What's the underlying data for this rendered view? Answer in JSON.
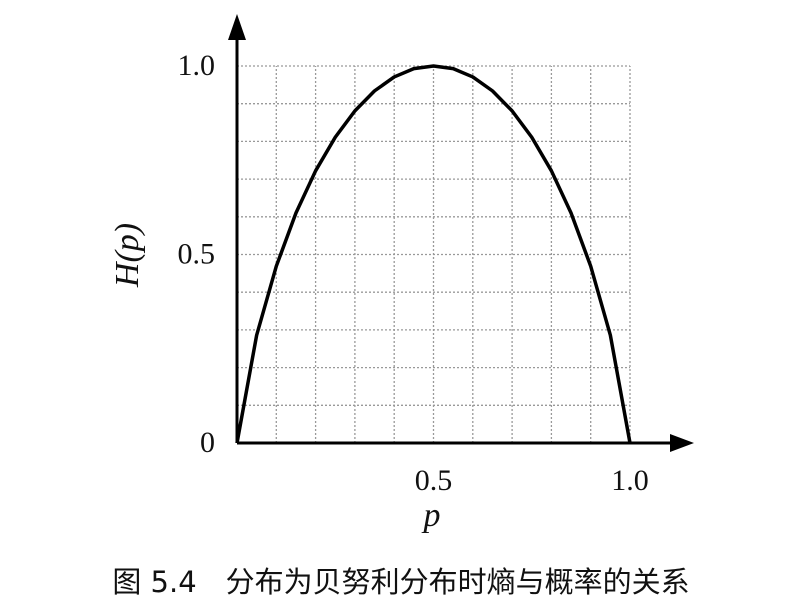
{
  "chart_data": {
    "type": "line",
    "xlabel": "p",
    "ylabel": "H(p)",
    "caption": "图 5.4　分布为贝努利分布时熵与概率的关系",
    "x": [
      0,
      0.05,
      0.1,
      0.15,
      0.2,
      0.25,
      0.3,
      0.35,
      0.4,
      0.45,
      0.5,
      0.55,
      0.6,
      0.65,
      0.7,
      0.75,
      0.8,
      0.85,
      0.9,
      0.95,
      1
    ],
    "values": [
      0,
      0.286,
      0.469,
      0.61,
      0.722,
      0.811,
      0.881,
      0.934,
      0.971,
      0.993,
      1,
      0.993,
      0.971,
      0.934,
      0.881,
      0.811,
      0.722,
      0.61,
      0.469,
      0.286,
      0
    ],
    "color": "#000000",
    "xlim": [
      0,
      1
    ],
    "ylim": [
      0,
      1
    ],
    "xticks": [
      0.5,
      {
        "value": 1,
        "label": "1.0"
      }
    ],
    "yticks": [
      0,
      0.5,
      {
        "value": 1,
        "label": "1.0"
      }
    ],
    "xgrid": [
      0.1,
      0.2,
      0.3,
      0.4,
      0.5,
      0.6,
      0.7,
      0.8,
      0.9,
      1
    ],
    "ygrid": [
      0.1,
      0.2,
      0.3,
      0.4,
      0.5,
      0.6,
      0.7,
      0.8,
      0.9,
      1
    ],
    "grid": true
  }
}
